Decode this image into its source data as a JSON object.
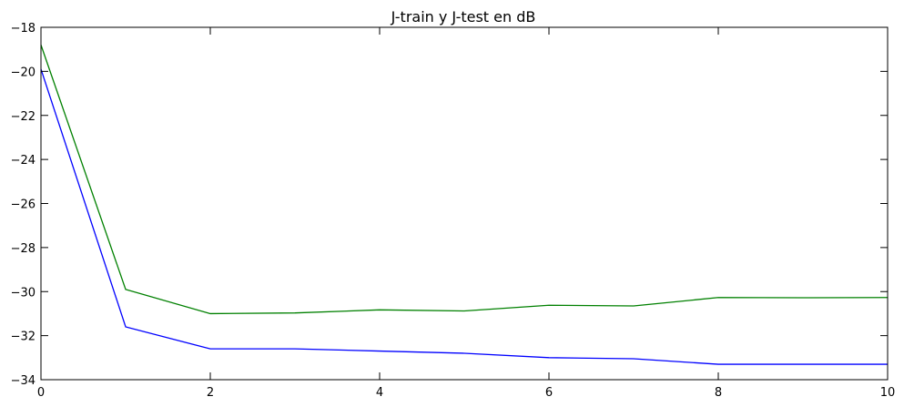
{
  "chart_data": {
    "type": "line",
    "title": "J-train y J-test en dB",
    "xlabel": "",
    "ylabel": "",
    "xlim": [
      0,
      10
    ],
    "ylim": [
      -34,
      -18
    ],
    "x_ticks": [
      0,
      2,
      4,
      6,
      8,
      10
    ],
    "y_ticks": [
      -34,
      -32,
      -30,
      -28,
      -26,
      -24,
      -22,
      -20,
      -18
    ],
    "x_tick_labels": [
      "0",
      "2",
      "4",
      "6",
      "8",
      "10"
    ],
    "y_tick_labels": [
      "−34",
      "−32",
      "−30",
      "−28",
      "−26",
      "−24",
      "−22",
      "−20",
      "−18"
    ],
    "grid": false,
    "x": [
      0,
      1,
      2,
      3,
      4,
      5,
      6,
      7,
      8,
      9,
      10
    ],
    "series": [
      {
        "color": "#0000ff",
        "values": [
          -19.9,
          -31.6,
          -32.6,
          -32.6,
          -32.7,
          -32.8,
          -33.0,
          -33.05,
          -33.3,
          -33.3,
          -33.3
        ]
      },
      {
        "color": "#008000",
        "values": [
          -18.8,
          -29.9,
          -31.0,
          -30.97,
          -30.83,
          -30.88,
          -30.62,
          -30.65,
          -30.27,
          -30.28,
          -30.27
        ]
      }
    ]
  }
}
